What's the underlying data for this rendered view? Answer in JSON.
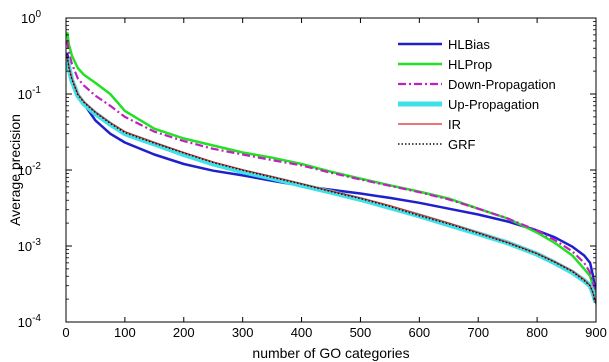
{
  "chart_data": {
    "type": "line",
    "xlabel": "number of GO categories",
    "ylabel": "Average precision",
    "xlim": [
      0,
      900
    ],
    "ylim": [
      0.0001,
      1
    ],
    "yscale": "log",
    "x_ticks": [
      0,
      100,
      200,
      300,
      400,
      500,
      600,
      700,
      800,
      900
    ],
    "y_ticks": [
      {
        "value": 0.0001,
        "base": "10",
        "exp": "-4"
      },
      {
        "value": 0.001,
        "base": "10",
        "exp": "-3"
      },
      {
        "value": 0.01,
        "base": "10",
        "exp": "-2"
      },
      {
        "value": 0.1,
        "base": "10",
        "exp": "-1"
      },
      {
        "value": 1,
        "base": "10",
        "exp": "0"
      }
    ],
    "grid": false,
    "legend_position": "top-right",
    "series": [
      {
        "name": "HLBias",
        "color": "#1f1fcc",
        "dash": "solid",
        "x": [
          2,
          5,
          10,
          20,
          30,
          50,
          75,
          100,
          150,
          200,
          250,
          300,
          350,
          400,
          450,
          500,
          550,
          600,
          650,
          700,
          750,
          800,
          830,
          860,
          880,
          890,
          895,
          900
        ],
        "y": [
          0.35,
          0.25,
          0.16,
          0.1,
          0.075,
          0.045,
          0.03,
          0.023,
          0.016,
          0.012,
          0.0098,
          0.0085,
          0.0072,
          0.0062,
          0.0055,
          0.0049,
          0.0043,
          0.0037,
          0.0031,
          0.0026,
          0.0021,
          0.0016,
          0.0013,
          0.00098,
          0.00075,
          0.0006,
          0.0004,
          0.00022
        ]
      },
      {
        "name": "HLProp",
        "color": "#22e022",
        "dash": "solid",
        "x": [
          2,
          5,
          10,
          20,
          30,
          50,
          75,
          100,
          150,
          200,
          250,
          300,
          350,
          400,
          450,
          500,
          550,
          600,
          650,
          700,
          750,
          800,
          830,
          860,
          880,
          890,
          895,
          900
        ],
        "y": [
          0.65,
          0.45,
          0.32,
          0.22,
          0.18,
          0.14,
          0.1,
          0.06,
          0.035,
          0.026,
          0.021,
          0.017,
          0.0145,
          0.012,
          0.0095,
          0.0077,
          0.0063,
          0.0052,
          0.0042,
          0.0031,
          0.0023,
          0.0015,
          0.0011,
          0.00075,
          0.0005,
          0.0004,
          0.0003,
          0.0002
        ]
      },
      {
        "name": "Down-Propagation",
        "color": "#c020c0",
        "dash": "dashdot",
        "x": [
          2,
          5,
          10,
          20,
          30,
          50,
          75,
          100,
          150,
          200,
          250,
          300,
          350,
          400,
          450,
          500,
          550,
          600,
          650,
          700,
          750,
          800,
          830,
          860,
          880,
          890,
          895,
          900
        ],
        "y": [
          0.5,
          0.35,
          0.25,
          0.16,
          0.13,
          0.095,
          0.07,
          0.05,
          0.032,
          0.024,
          0.019,
          0.016,
          0.0135,
          0.0115,
          0.0092,
          0.0075,
          0.0062,
          0.0051,
          0.0041,
          0.0031,
          0.0023,
          0.0016,
          0.0012,
          0.00085,
          0.0006,
          0.00045,
          0.00033,
          0.0002
        ]
      },
      {
        "name": "Up-Propagation",
        "color": "#40e0e8",
        "dash": "thick",
        "x": [
          2,
          5,
          10,
          20,
          30,
          50,
          75,
          100,
          150,
          200,
          250,
          300,
          350,
          400,
          450,
          500,
          550,
          600,
          650,
          700,
          750,
          800,
          830,
          860,
          880,
          890,
          895,
          900
        ],
        "y": [
          0.3,
          0.22,
          0.15,
          0.095,
          0.075,
          0.055,
          0.04,
          0.03,
          0.022,
          0.016,
          0.012,
          0.0095,
          0.0078,
          0.0063,
          0.0051,
          0.0041,
          0.0032,
          0.0025,
          0.0019,
          0.00145,
          0.0011,
          0.00078,
          0.0006,
          0.00045,
          0.00035,
          0.0003,
          0.00024,
          0.00018
        ]
      },
      {
        "name": "IR",
        "color": "#e02020",
        "dash": "solid",
        "x": [
          2,
          5,
          10,
          20,
          30,
          50,
          75,
          100,
          150,
          200,
          250,
          300,
          350,
          400,
          450,
          500,
          550,
          600,
          650,
          700,
          750,
          800,
          830,
          860,
          880,
          890,
          895,
          900
        ],
        "y": [
          0.32,
          0.23,
          0.16,
          0.1,
          0.08,
          0.058,
          0.042,
          0.032,
          0.023,
          0.017,
          0.0128,
          0.0101,
          0.0082,
          0.0066,
          0.0053,
          0.0043,
          0.0034,
          0.0026,
          0.002,
          0.0015,
          0.00112,
          0.0008,
          0.00062,
          0.00047,
          0.00036,
          0.0003,
          0.00024,
          0.00017
        ]
      },
      {
        "name": "GRF",
        "color": "#111111",
        "dash": "dotted",
        "x": [
          2,
          5,
          10,
          20,
          30,
          50,
          75,
          100,
          150,
          200,
          250,
          300,
          350,
          400,
          450,
          500,
          550,
          600,
          650,
          700,
          750,
          800,
          830,
          860,
          880,
          890,
          895,
          900
        ],
        "y": [
          0.31,
          0.22,
          0.155,
          0.098,
          0.078,
          0.057,
          0.041,
          0.031,
          0.0225,
          0.0167,
          0.0125,
          0.0099,
          0.008,
          0.0065,
          0.0052,
          0.0042,
          0.0033,
          0.0025,
          0.00195,
          0.00147,
          0.0011,
          0.00079,
          0.00061,
          0.00046,
          0.00035,
          0.0003,
          0.00024,
          0.00017
        ]
      }
    ]
  }
}
